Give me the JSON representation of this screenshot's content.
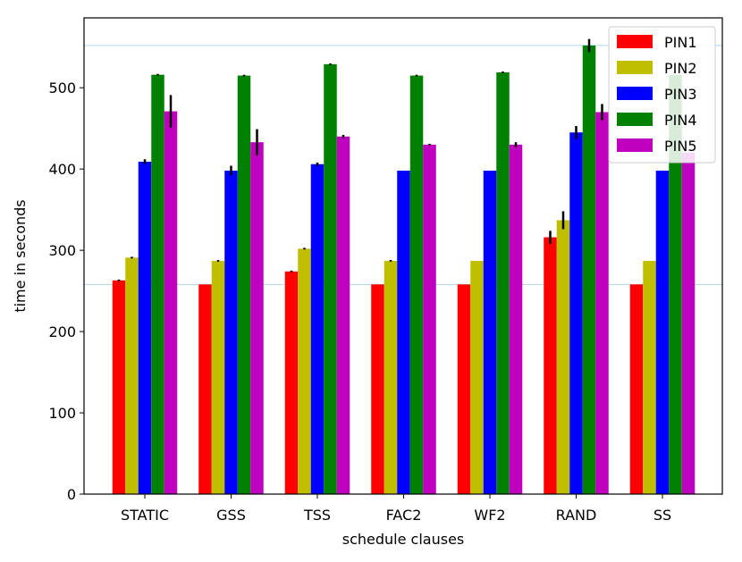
{
  "chart_data": {
    "type": "bar",
    "title": "",
    "xlabel": "schedule clauses",
    "ylabel": "time in seconds",
    "ylim": [
      0,
      586
    ],
    "yticks": [
      0,
      100,
      200,
      300,
      400,
      500
    ],
    "grid": false,
    "legend_position": "top-right",
    "categories": [
      "STATIC",
      "GSS",
      "TSS",
      "FAC2",
      "WF2",
      "RAND",
      "SS"
    ],
    "series": [
      {
        "name": "PIN1",
        "color": "#ff0000",
        "values": [
          263,
          258,
          274,
          258,
          258,
          316,
          258
        ],
        "errors": [
          1,
          0,
          1,
          0,
          0,
          8,
          0
        ]
      },
      {
        "name": "PIN2",
        "color": "#bfbf00",
        "values": [
          291,
          287,
          302,
          287,
          287,
          337,
          287
        ],
        "errors": [
          1,
          1,
          1,
          1,
          0,
          11,
          0
        ]
      },
      {
        "name": "PIN3",
        "color": "#0000ff",
        "values": [
          409,
          398,
          406,
          398,
          398,
          445,
          398
        ],
        "errors": [
          3,
          6,
          2,
          0,
          0,
          8,
          0
        ]
      },
      {
        "name": "PIN4",
        "color": "#008000",
        "values": [
          516,
          515,
          529,
          515,
          519,
          552,
          516
        ],
        "errors": [
          1,
          1,
          1,
          1,
          1,
          8,
          0
        ]
      },
      {
        "name": "PIN5",
        "color": "#bf00bf",
        "values": [
          471,
          433,
          440,
          430,
          430,
          470,
          420
        ],
        "errors": [
          20,
          16,
          2,
          1,
          3,
          10,
          0
        ]
      }
    ],
    "reference_lines": [
      {
        "value": 552,
        "color": "#add8e6"
      },
      {
        "value": 258,
        "color": "#add8e6"
      }
    ]
  }
}
